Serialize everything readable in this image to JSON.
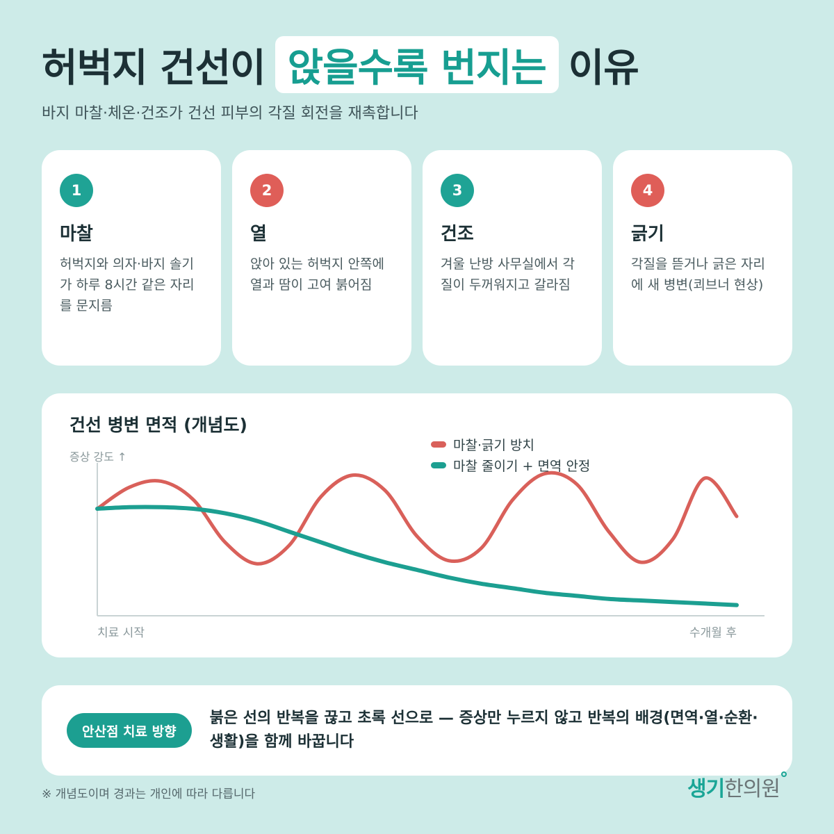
{
  "header": {
    "title_pre": "허벅지 건선이",
    "title_highlight": "앉을수록 번지는",
    "title_post": "이유",
    "subtitle": "바지 마찰·체온·건조가 건선 피부의 각질 회전을 재촉합니다"
  },
  "cards": [
    {
      "num": "1",
      "title": "마찰",
      "desc": "허벅지와 의자·바지 솔기가 하루 8시간 같은 자리를 문지름",
      "color": "#1fa395"
    },
    {
      "num": "2",
      "title": "열",
      "desc": "앉아 있는 허벅지 안쪽에 열과 땀이 고여 붉어짐",
      "color": "#df5e58"
    },
    {
      "num": "3",
      "title": "건조",
      "desc": "겨울 난방 사무실에서 각질이 두꺼워지고 갈라짐",
      "color": "#1fa395"
    },
    {
      "num": "4",
      "title": "긁기",
      "desc": "각질을 뜯거나 긁은 자리에 새 병변(쾨브너 현상)",
      "color": "#df5e58"
    }
  ],
  "chart_data": {
    "type": "line",
    "title": "건선 병변 면적 (개념도)",
    "ylabel": "증상 강도 ↑",
    "xlabel_start": "치료 시작",
    "xlabel_end": "수개월 후",
    "legend_placement": "top-right",
    "grid": false,
    "x": [
      0,
      0.05,
      0.1,
      0.15,
      0.2,
      0.25,
      0.3,
      0.35,
      0.4,
      0.45,
      0.5,
      0.55,
      0.6,
      0.65,
      0.7,
      0.75,
      0.8,
      0.85,
      0.9,
      0.95,
      1.0
    ],
    "ylim": [
      0,
      1
    ],
    "series": [
      {
        "name": "마찰·긁기 방치",
        "color": "#d9605a",
        "values": [
          0.7,
          0.84,
          0.88,
          0.76,
          0.48,
          0.34,
          0.46,
          0.78,
          0.92,
          0.82,
          0.52,
          0.36,
          0.44,
          0.76,
          0.93,
          0.86,
          0.55,
          0.35,
          0.5,
          0.9,
          0.65
        ]
      },
      {
        "name": "마찰 줄이기 + 면역 안정",
        "color": "#1c9f91",
        "values": [
          0.7,
          0.71,
          0.71,
          0.7,
          0.67,
          0.62,
          0.55,
          0.48,
          0.41,
          0.35,
          0.3,
          0.25,
          0.21,
          0.18,
          0.15,
          0.13,
          0.11,
          0.1,
          0.09,
          0.08,
          0.07
        ]
      }
    ]
  },
  "bottom": {
    "pill": "안산점 치료 방향",
    "text": "붉은 선의 반복을 끊고 초록 선으로 — 증상만 누르지 않고 반복의 배경(면역·열·순환·생활)을 함께 바꿉니다"
  },
  "footnote": "※ 개념도이며 경과는 개인에 따라 다릅니다",
  "logo": {
    "part1": "생기",
    "part2": "한의원"
  }
}
